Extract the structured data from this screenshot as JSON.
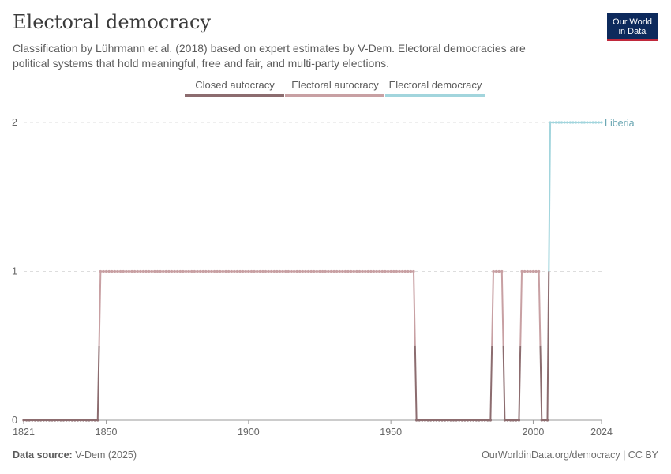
{
  "header": {
    "title": "Electoral democracy",
    "subtitle": "Classification by Lührmann et al. (2018) based on expert estimates by V-Dem. Electoral democracies are political systems that hold meaningful, free and fair, and multi-party elections."
  },
  "logo": {
    "line1": "Our World",
    "line2": "in Data"
  },
  "footer": {
    "source_label": "Data source:",
    "source_value": "V-Dem (2025)",
    "link": "OurWorldinData.org/democracy | CC BY"
  },
  "colors": {
    "closed_autocracy": "#8c6c6f",
    "electoral_autocracy": "#c8a0a3",
    "electoral_democracy": "#a2d5dd",
    "series_label": "#6aa6b2"
  },
  "chart_data": {
    "type": "line",
    "title": "Electoral democracy",
    "series_name": "Liberia",
    "xlim": [
      1821,
      2024
    ],
    "ylim": [
      0,
      2
    ],
    "y_ticks": [
      "0",
      "1",
      "2"
    ],
    "x_ticks": [
      "1821",
      "1850",
      "1900",
      "1950",
      "2000",
      "2024"
    ],
    "legend": [
      "Closed autocracy",
      "Electoral autocracy",
      "Electoral democracy"
    ],
    "legend_placement": "top",
    "grid": "horizontal dashed",
    "segments": [
      {
        "from": 1821,
        "to": 1847,
        "value": 0
      },
      {
        "from": 1848,
        "to": 1958,
        "value": 1
      },
      {
        "from": 1959,
        "to": 1985,
        "value": 0
      },
      {
        "from": 1986,
        "to": 1989,
        "value": 1
      },
      {
        "from": 1990,
        "to": 1995,
        "value": 0
      },
      {
        "from": 1996,
        "to": 2002,
        "value": 1
      },
      {
        "from": 2003,
        "to": 2005,
        "value": 0
      },
      {
        "from": 2006,
        "to": 2024,
        "value": 2
      }
    ]
  }
}
